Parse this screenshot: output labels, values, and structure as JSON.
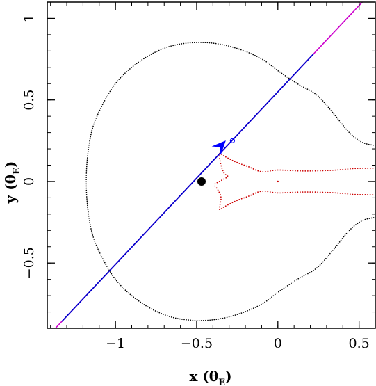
{
  "chart_data": {
    "type": "scatter",
    "xlabel": "x (θ",
    "xlabel_sub": "E",
    "xlabel_close": ")",
    "ylabel": "y (θ",
    "ylabel_sub": "E",
    "ylabel_close": ")",
    "xlim": [
      -1.42,
      0.6
    ],
    "ylim": [
      -0.9,
      1.1
    ],
    "x_ticks": [
      {
        "value": -1,
        "label": "−1"
      },
      {
        "value": -0.5,
        "label": "−0.5"
      },
      {
        "value": 0,
        "label": "0"
      },
      {
        "value": 0.5,
        "label": "0.5"
      }
    ],
    "y_ticks": [
      {
        "value": -0.5,
        "label": "−0.5"
      },
      {
        "value": 0,
        "label": "0"
      },
      {
        "value": 0.5,
        "label": "0.5"
      },
      {
        "value": 1,
        "label": "1"
      }
    ],
    "grid": false,
    "series": [
      {
        "kind": "critical_curve",
        "style": "dotted",
        "color": "#000000",
        "points": [
          [
            0.6,
            0.22
          ],
          [
            0.52,
            0.24
          ],
          [
            0.44,
            0.3
          ],
          [
            0.34,
            0.42
          ],
          [
            0.24,
            0.53
          ],
          [
            0.12,
            0.6
          ],
          [
            0.0,
            0.68
          ],
          [
            -0.08,
            0.74
          ],
          [
            -0.18,
            0.79
          ],
          [
            -0.3,
            0.83
          ],
          [
            -0.42,
            0.85
          ],
          [
            -0.54,
            0.85
          ],
          [
            -0.66,
            0.83
          ],
          [
            -0.78,
            0.78
          ],
          [
            -0.9,
            0.7
          ],
          [
            -1.0,
            0.6
          ],
          [
            -1.08,
            0.47
          ],
          [
            -1.14,
            0.33
          ],
          [
            -1.17,
            0.17
          ],
          [
            -1.18,
            0.0
          ],
          [
            -1.17,
            -0.17
          ],
          [
            -1.14,
            -0.33
          ],
          [
            -1.08,
            -0.47
          ],
          [
            -1.0,
            -0.6
          ],
          [
            -0.9,
            -0.7
          ],
          [
            -0.78,
            -0.78
          ],
          [
            -0.66,
            -0.83
          ],
          [
            -0.54,
            -0.85
          ],
          [
            -0.42,
            -0.85
          ],
          [
            -0.3,
            -0.83
          ],
          [
            -0.18,
            -0.79
          ],
          [
            -0.08,
            -0.74
          ],
          [
            0.0,
            -0.68
          ],
          [
            0.12,
            -0.6
          ],
          [
            0.24,
            -0.53
          ],
          [
            0.34,
            -0.42
          ],
          [
            0.44,
            -0.3
          ],
          [
            0.52,
            -0.24
          ],
          [
            0.6,
            -0.22
          ]
        ]
      },
      {
        "kind": "caustic",
        "style": "dotted",
        "color": "#cc0000",
        "points": [
          [
            0.6,
            0.08
          ],
          [
            0.48,
            0.08
          ],
          [
            0.36,
            0.07
          ],
          [
            0.24,
            0.065
          ],
          [
            0.12,
            0.065
          ],
          [
            0.0,
            0.07
          ],
          [
            -0.1,
            0.06
          ],
          [
            -0.18,
            0.09
          ],
          [
            -0.26,
            0.12
          ],
          [
            -0.33,
            0.155
          ],
          [
            -0.36,
            0.17
          ],
          [
            -0.35,
            0.1
          ],
          [
            -0.33,
            0.05
          ],
          [
            -0.31,
            0.03
          ],
          [
            -0.36,
            0.0
          ],
          [
            -0.39,
            -0.02
          ],
          [
            -0.37,
            -0.05
          ],
          [
            -0.35,
            -0.1
          ],
          [
            -0.36,
            -0.17
          ],
          [
            -0.33,
            -0.155
          ],
          [
            -0.26,
            -0.12
          ],
          [
            -0.18,
            -0.09
          ],
          [
            -0.1,
            -0.06
          ],
          [
            0.0,
            -0.07
          ],
          [
            0.12,
            -0.065
          ],
          [
            0.24,
            -0.065
          ],
          [
            0.36,
            -0.07
          ],
          [
            0.48,
            -0.08
          ],
          [
            0.6,
            -0.08
          ]
        ]
      },
      {
        "kind": "source_trajectory",
        "style": "solid",
        "color_in": "#cc00cc",
        "color_main": "#0000cc",
        "start": [
          -1.37,
          -0.9
        ],
        "end": [
          0.52,
          1.1
        ],
        "main_from_x": -1.33,
        "main_to_x": 0.22
      },
      {
        "kind": "lens_position",
        "style": "filled_circle",
        "color": "#000000",
        "point": [
          -0.47,
          0.0
        ]
      },
      {
        "kind": "source_marker",
        "style": "arrowhead_with_circle",
        "color": "#0000ff",
        "point": [
          -0.35,
          0.22
        ],
        "circle": [
          -0.28,
          0.25
        ],
        "direction": [
          1,
          1.06
        ]
      },
      {
        "kind": "red_dot",
        "style": "dot",
        "color": "#cc0000",
        "point": [
          0.0,
          0.0
        ]
      }
    ]
  }
}
